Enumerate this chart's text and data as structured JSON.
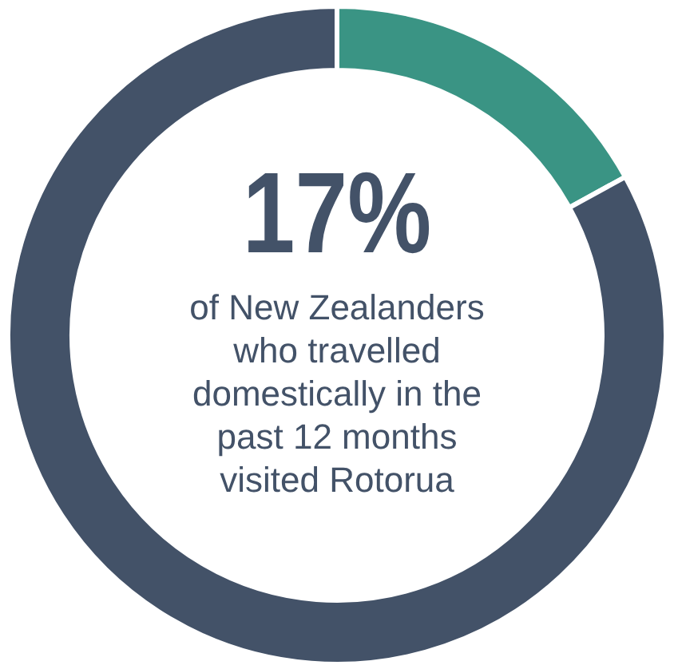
{
  "chart_data": {
    "type": "donut",
    "title": "17%",
    "subtitle": "of New Zealanders who travelled domestically in the past 12 months visited Rotorua",
    "categories": [
      null,
      null
    ],
    "values": [
      17,
      83
    ],
    "colors": [
      "#3a9484",
      "#435268"
    ]
  }
}
